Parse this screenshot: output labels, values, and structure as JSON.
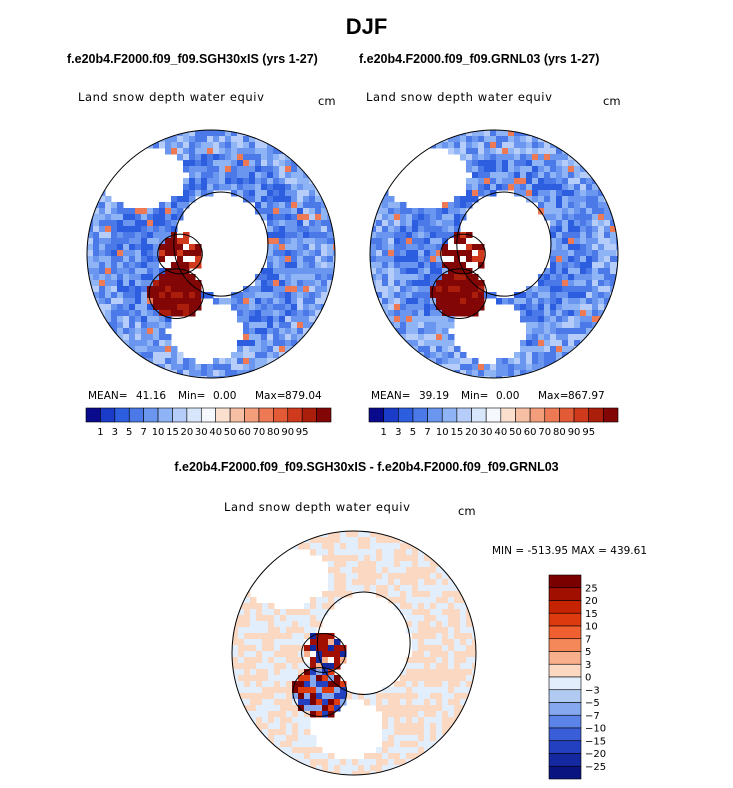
{
  "main_title": "DJF",
  "colors": {
    "seq": [
      "#0a0a8c",
      "#1a3cc8",
      "#2e5ee0",
      "#4b7ae8",
      "#6a96f0",
      "#8fb4f5",
      "#b5cdf8",
      "#d8e6fb",
      "#f5f8fc",
      "#fbe0d0",
      "#f7c0a4",
      "#f49e7b",
      "#ee7a55",
      "#e35a36",
      "#cf3a1c",
      "#ab1e0c",
      "#820606"
    ],
    "ocean": "#ffffff",
    "land_low": "#3f6fe0",
    "land_high": "#8a0a00"
  },
  "chart_data": [
    {
      "type": "heatmap",
      "projection": "north-polar-stereographic",
      "case": "f.e20b4.F2000.f09_f09.SGH30xIS (yrs 1-27)",
      "variable": "Land snow depth water equiv",
      "units": "cm",
      "mean_label": "MEAN=",
      "mean": "41.16",
      "min_label": "Min=",
      "min": "0.00",
      "max_label": "Max=",
      "max": "879.04",
      "colorbar_labels": [
        "1",
        "3",
        "5",
        "7",
        "10",
        "15",
        "20",
        "30",
        "40",
        "50",
        "60",
        "70",
        "80",
        "90",
        "95"
      ]
    },
    {
      "type": "heatmap",
      "projection": "north-polar-stereographic",
      "case": "f.e20b4.F2000.f09_f09.GRNL03 (yrs 1-27)",
      "variable": "Land snow depth water equiv",
      "units": "cm",
      "mean_label": "MEAN=",
      "mean": "39.19",
      "min_label": "Min=",
      "min": "0.00",
      "max_label": "Max=",
      "max": "867.97",
      "colorbar_labels": [
        "1",
        "3",
        "5",
        "7",
        "10",
        "15",
        "20",
        "30",
        "40",
        "50",
        "60",
        "70",
        "80",
        "90",
        "95"
      ]
    },
    {
      "type": "heatmap",
      "projection": "north-polar-stereographic",
      "case": "f.e20b4.F2000.f09_f09.SGH30xIS - f.e20b4.F2000.f09_f09.GRNL03",
      "variable": "Land snow depth water equiv",
      "units": "cm",
      "range_text": "MIN = -513.95  MAX = 439.61",
      "colorbar_labels": [
        "25",
        "20",
        "15",
        "10",
        "7",
        "5",
        "3",
        "0",
        "−3",
        "−5",
        "−7",
        "−10",
        "−15",
        "−20",
        "−25"
      ],
      "colorbar_colors": [
        "#7a0000",
        "#a00f00",
        "#c62300",
        "#de3a10",
        "#f06030",
        "#f58858",
        "#f8b08c",
        "#fbd8c2",
        "#e2eefb",
        "#b0caf2",
        "#86a8ee",
        "#5c84e8",
        "#3a5ed8",
        "#2240c0",
        "#1428a0",
        "#0a1480"
      ]
    }
  ]
}
